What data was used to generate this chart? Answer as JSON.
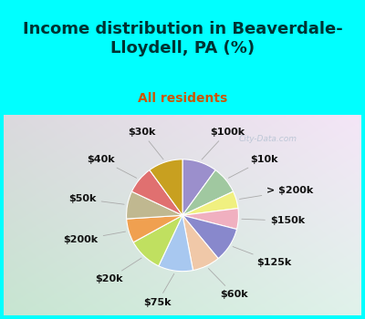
{
  "title": "Income distribution in Beaverdale-\nLloydell, PA (%)",
  "subtitle": "All residents",
  "title_color": "#003333",
  "subtitle_color": "#cc5500",
  "background_top_color": "#00ffff",
  "watermark": "City-Data.com",
  "labels": [
    "$100k",
    "$10k",
    "> $200k",
    "$150k",
    "$125k",
    "$60k",
    "$75k",
    "$20k",
    "$200k",
    "$50k",
    "$40k",
    "$30k"
  ],
  "values": [
    10,
    8,
    5,
    6,
    10,
    8,
    10,
    10,
    7,
    8,
    8,
    10
  ],
  "colors": [
    "#9b8fcc",
    "#a0c8a0",
    "#f0f080",
    "#f0b0c0",
    "#8888cc",
    "#f0c8a8",
    "#a8c8f0",
    "#c0e060",
    "#f0a050",
    "#c0b890",
    "#e07070",
    "#c8a020"
  ],
  "label_color": "#111111",
  "label_fontsize": 8,
  "title_fontsize": 13,
  "subtitle_fontsize": 10
}
